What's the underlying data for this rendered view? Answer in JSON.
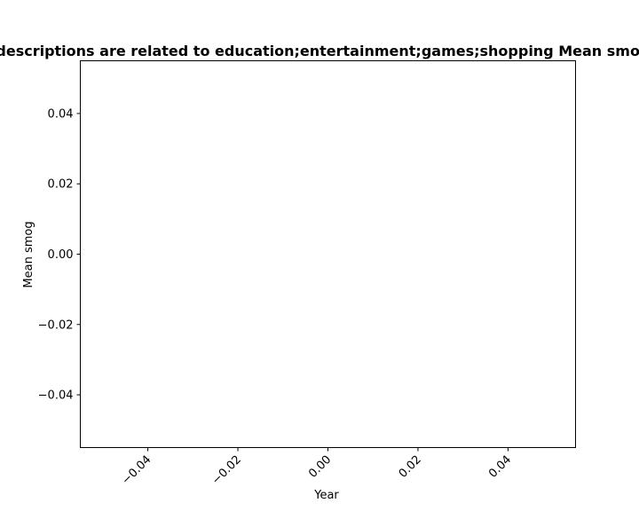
{
  "chart_data": {
    "type": "line",
    "title": "Mean smog for apps whose descriptions are related to education;entertainment;games;shopping Mean smog in privacy policies over time",
    "xlabel": "Year",
    "ylabel": "Mean smog",
    "xlim": [
      -0.055,
      0.055
    ],
    "ylim": [
      -0.055,
      0.055
    ],
    "x_ticks": [
      -0.04,
      -0.02,
      0.0,
      0.02,
      0.04
    ],
    "x_tick_labels": [
      "−0.04",
      "−0.02",
      "0.00",
      "0.02",
      "0.04"
    ],
    "y_ticks": [
      0.04,
      0.02,
      0.0,
      -0.02,
      -0.04
    ],
    "y_tick_labels": [
      "0.04",
      "0.02",
      "0.00",
      "−0.02",
      "−0.04"
    ],
    "series": [],
    "grid": false
  }
}
